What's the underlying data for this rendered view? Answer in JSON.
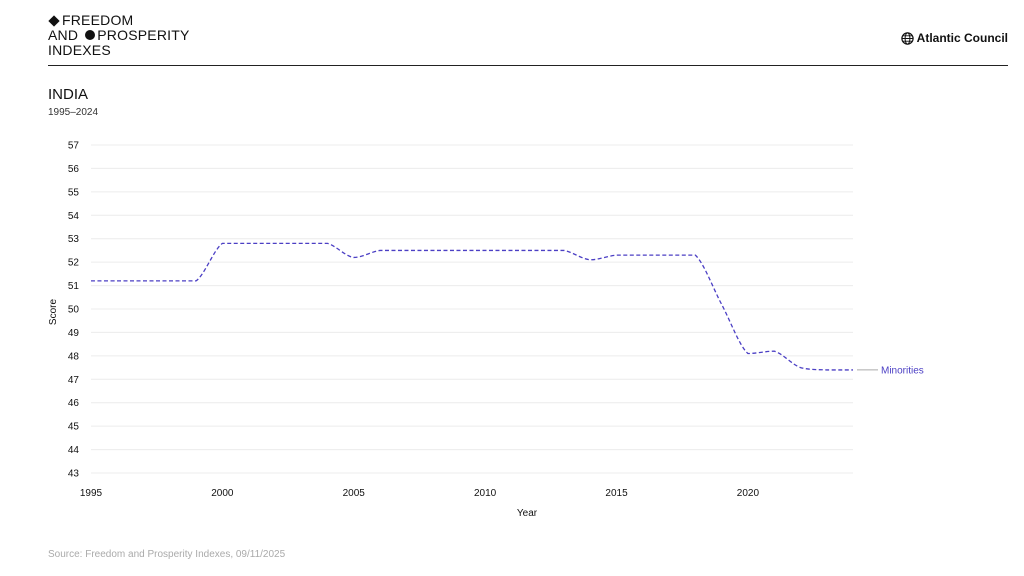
{
  "header": {
    "logo_line1": "FREEDOM",
    "logo_line2a": "AND",
    "logo_line2b": "PROSPERITY",
    "logo_line3": "INDEXES",
    "brand": "Atlantic Council"
  },
  "footer": {
    "source": "Source: Freedom and Prosperity Indexes, 09/11/2025"
  },
  "colors": {
    "series": "#4b3fc4",
    "grid": "#ececec",
    "leader": "#aaaaaa"
  },
  "chart_data": {
    "type": "line",
    "title": "INDIA",
    "subtitle": "1995–2024",
    "xlabel": "Year",
    "ylabel": "Score",
    "xlim": [
      1995,
      2024
    ],
    "ylim": [
      43,
      57
    ],
    "x_ticks": [
      1995,
      2000,
      2005,
      2010,
      2015,
      2020
    ],
    "y_ticks": [
      43,
      44,
      45,
      46,
      47,
      48,
      49,
      50,
      51,
      52,
      53,
      54,
      55,
      56,
      57
    ],
    "grid": true,
    "line_style": "dashed",
    "legend": "end-label",
    "series": [
      {
        "name": "Minorities",
        "x": [
          1995,
          1996,
          1997,
          1998,
          1999,
          2000,
          2001,
          2002,
          2003,
          2004,
          2005,
          2006,
          2007,
          2008,
          2009,
          2010,
          2011,
          2012,
          2013,
          2014,
          2015,
          2016,
          2017,
          2018,
          2019,
          2020,
          2021,
          2022,
          2023,
          2024
        ],
        "values": [
          51.2,
          51.2,
          51.2,
          51.2,
          51.2,
          52.8,
          52.8,
          52.8,
          52.8,
          52.8,
          52.2,
          52.5,
          52.5,
          52.5,
          52.5,
          52.5,
          52.5,
          52.5,
          52.5,
          52.1,
          52.3,
          52.3,
          52.3,
          52.3,
          50.2,
          48.1,
          48.2,
          47.5,
          47.4,
          47.4
        ]
      }
    ]
  }
}
